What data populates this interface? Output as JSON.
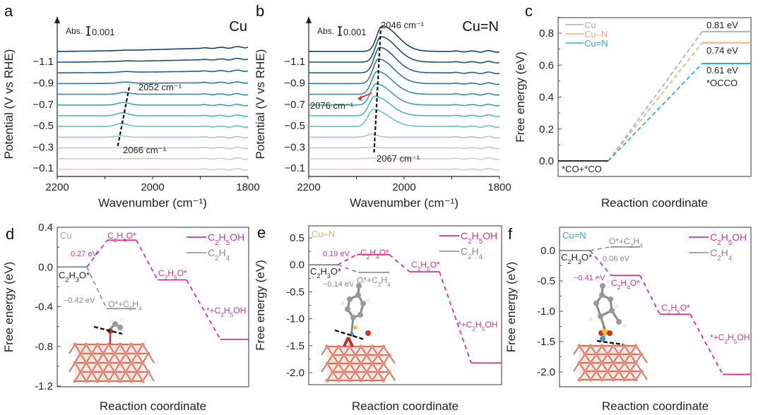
{
  "chart_data": [
    {
      "id": "a",
      "type": "line",
      "panel_label": "a",
      "title": "Cu",
      "xlabel": "Wavenumber (cm⁻¹)",
      "ylabel": "Potential (V vs RHE)",
      "xlim": [
        2200,
        1800
      ],
      "x_ticks": [
        "2200",
        "2000",
        "1800"
      ],
      "y_tick_labels": [
        "−1.1",
        "−0.9",
        "−0.7",
        "−0.5",
        "−0.3",
        "−0.1"
      ],
      "scale_bar": "Abs.",
      "scale_value": "0.001",
      "potentials": [
        -0.1,
        -0.2,
        -0.3,
        -0.4,
        -0.5,
        -0.6,
        -0.7,
        -0.8,
        -0.9,
        -1.0,
        -1.1,
        -1.2
      ],
      "peak_positions_cm": {
        "start": 2066,
        "end": 2052
      },
      "peak_amplitudes": [
        0.0,
        0.0,
        0.0,
        0.15,
        0.35,
        0.35,
        0.3,
        0.22,
        0.15,
        0.1,
        0.05,
        0.02
      ],
      "annotations": [
        {
          "text": "2052 cm⁻¹"
        },
        {
          "text": "2066 cm⁻¹"
        }
      ]
    },
    {
      "id": "b",
      "type": "line",
      "panel_label": "b",
      "title": "Cu=N",
      "xlabel": "Wavenumber (cm⁻¹)",
      "ylabel": "Potential (V vs RHE)",
      "xlim": [
        2200,
        1800
      ],
      "x_ticks": [
        "2200",
        "2000",
        "1800"
      ],
      "y_tick_labels": [
        "−1.1",
        "−0.9",
        "−0.7",
        "−0.5",
        "−0.3",
        "−0.1"
      ],
      "scale_bar": "Abs.",
      "scale_value": "0.001",
      "potentials": [
        -0.1,
        -0.2,
        -0.3,
        -0.4,
        -0.5,
        -0.6,
        -0.7,
        -0.8,
        -0.9,
        -1.0,
        -1.1,
        -1.2
      ],
      "peak_positions_cm": {
        "start": 2067,
        "end": 2046
      },
      "peak_amplitudes": [
        0.0,
        0.05,
        0.1,
        0.35,
        2.0,
        2.3,
        2.5,
        2.7,
        2.9,
        3.0,
        3.0,
        3.0
      ],
      "annotations": [
        {
          "text": "2046 cm⁻¹"
        },
        {
          "text": "2076 cm⁻¹"
        },
        {
          "text": "2067 cm⁻¹"
        }
      ]
    },
    {
      "id": "c",
      "type": "line",
      "panel_label": "c",
      "xlabel": "Reaction coordinate",
      "ylabel": "Free energy (eV)",
      "ylim": [
        -0.1,
        0.9
      ],
      "y_ticks": [
        0.0,
        0.2,
        0.4,
        0.6,
        0.8
      ],
      "states": [
        "*CO+*CO",
        "*OCCO"
      ],
      "series": [
        {
          "name": "Cu",
          "color": "#9fb4c0",
          "values": [
            0.0,
            0.81
          ],
          "label": "0.81 eV"
        },
        {
          "name": "Cu–N",
          "color": "#f0b07a",
          "values": [
            0.0,
            0.74
          ],
          "label": "0.74 eV"
        },
        {
          "name": "Cu=N",
          "color": "#2aaed9",
          "values": [
            0.0,
            0.61
          ],
          "label": "0.61 eV"
        }
      ],
      "legend": "top-left"
    },
    {
      "id": "d",
      "type": "line",
      "panel_label": "d",
      "material": "Cu",
      "material_color": "#a0a8ad",
      "xlabel": "Reaction coordinate",
      "ylabel": "Free energy (eV)",
      "ylim": [
        -1.2,
        0.4
      ],
      "y_ticks": [
        "0.4",
        "0.0",
        "-0.4",
        "-0.8",
        "-1.2"
      ],
      "y_tick_values": [
        0.4,
        0.0,
        -0.4,
        -0.8,
        -1.2
      ],
      "ethanol_path": {
        "name": "C₂H₅OH",
        "color": "#d6338a",
        "states": [
          "C₂H₃O*",
          "C₂H₄O*",
          "C₂H₅O*",
          "*+C₂H₅OH"
        ],
        "values": [
          0.0,
          0.27,
          -0.13,
          -0.73
        ],
        "barrier_label": "0.27 eV"
      },
      "ethylene_path": {
        "name": "C₂H₄",
        "color": "#8a8a8a",
        "states": [
          "C₂H₃O*",
          "O*+C₂H₄"
        ],
        "values": [
          0.0,
          -0.42
        ],
        "label": "−0.42 eV"
      },
      "legend": "top-right"
    },
    {
      "id": "e",
      "type": "line",
      "panel_label": "e",
      "material": "Cu–N",
      "material_color": "#f0b07a",
      "xlabel": "Reaction coordinate",
      "ylabel": "Free energy (eV)",
      "ylim": [
        -2.2,
        0.7
      ],
      "y_ticks": [
        "0.5",
        "0.0",
        "-0.5",
        "-1.0",
        "-1.5",
        "-2.0"
      ],
      "y_tick_values": [
        0.5,
        0.0,
        -0.5,
        -1.0,
        -1.5,
        -2.0
      ],
      "ethanol_path": {
        "name": "C₂H₅OH",
        "color": "#d6338a",
        "states": [
          "C₂H₃O*",
          "C₂H₄O*",
          "C₂H₅O*",
          "*+C₂H₅OH"
        ],
        "values": [
          0.0,
          0.19,
          -0.13,
          -1.82
        ],
        "barrier_label": "0.19 eV"
      },
      "ethylene_path": {
        "name": "C₂H₄",
        "color": "#8a8a8a",
        "states": [
          "C₂H₃O*",
          "O*+C₂H₄"
        ],
        "values": [
          0.0,
          -0.14
        ],
        "label": "−0.14 eV"
      },
      "legend": "top-right"
    },
    {
      "id": "f",
      "type": "line",
      "panel_label": "f",
      "material": "Cu=N",
      "material_color": "#2aaed9",
      "xlabel": "Reaction coordinate",
      "ylabel": "Free energy (eV)",
      "ylim": [
        -2.25,
        0.4
      ],
      "y_ticks": [
        "0.0",
        "-0.5",
        "-1.0",
        "-1.5",
        "-2.0"
      ],
      "y_tick_values": [
        0.0,
        -0.5,
        -1.0,
        -1.5,
        -2.0
      ],
      "ethanol_path": {
        "name": "C₂H₅OH",
        "color": "#d6338a",
        "states": [
          "C₂H₃O*",
          "C₂H₄O*",
          "C₂H₅O*",
          "*+C₂H₅OH"
        ],
        "values": [
          0.0,
          -0.41,
          -1.05,
          -2.04
        ],
        "barrier_label": "−0.41 eV"
      },
      "ethylene_path": {
        "name": "C₂H₄",
        "color": "#8a8a8a",
        "states": [
          "C₂H₃O*",
          "O*+C₂H₄"
        ],
        "values": [
          0.0,
          0.06
        ],
        "label": "0.06 eV"
      },
      "legend": "top-right"
    }
  ]
}
